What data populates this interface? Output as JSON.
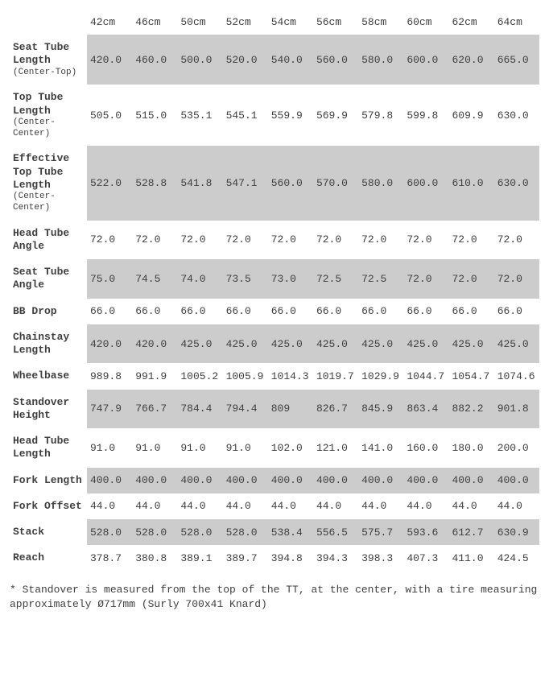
{
  "table": {
    "background_color": "#ffffff",
    "shade_color": "#cccccc",
    "text_color": "#3f3f3f",
    "font_family": "Courier New",
    "columns": [
      "42cm",
      "46cm",
      "50cm",
      "52cm",
      "54cm",
      "56cm",
      "58cm",
      "60cm",
      "62cm",
      "64cm"
    ],
    "rows": [
      {
        "label": "Seat Tube Length",
        "sublabel": "(Center-Top)",
        "shaded": true,
        "values": [
          "420.0",
          "460.0",
          "500.0",
          "520.0",
          "540.0",
          "560.0",
          "580.0",
          "600.0",
          "620.0",
          "665.0"
        ]
      },
      {
        "label": "Top Tube Length",
        "sublabel": "(Center-Center)",
        "shaded": false,
        "values": [
          "505.0",
          "515.0",
          "535.1",
          "545.1",
          "559.9",
          "569.9",
          "579.8",
          "599.8",
          "609.9",
          "630.0"
        ]
      },
      {
        "label": "Effective Top Tube Length",
        "sublabel": "(Center-Center)",
        "shaded": true,
        "values": [
          "522.0",
          "528.8",
          "541.8",
          "547.1",
          "560.0",
          "570.0",
          "580.0",
          "600.0",
          "610.0",
          "630.0"
        ]
      },
      {
        "label": "Head Tube Angle",
        "sublabel": "",
        "shaded": false,
        "values": [
          "72.0",
          "72.0",
          "72.0",
          "72.0",
          "72.0",
          "72.0",
          "72.0",
          "72.0",
          "72.0",
          "72.0"
        ]
      },
      {
        "label": "Seat Tube Angle",
        "sublabel": "",
        "shaded": true,
        "values": [
          "75.0",
          "74.5",
          "74.0",
          "73.5",
          "73.0",
          "72.5",
          "72.5",
          "72.0",
          "72.0",
          "72.0"
        ]
      },
      {
        "label": "BB Drop",
        "sublabel": "",
        "shaded": false,
        "values": [
          "66.0",
          "66.0",
          "66.0",
          "66.0",
          "66.0",
          "66.0",
          "66.0",
          "66.0",
          "66.0",
          "66.0"
        ]
      },
      {
        "label": "Chainstay Length",
        "sublabel": "",
        "shaded": true,
        "values": [
          "420.0",
          "420.0",
          "425.0",
          "425.0",
          "425.0",
          "425.0",
          "425.0",
          "425.0",
          "425.0",
          "425.0"
        ]
      },
      {
        "label": "Wheelbase",
        "sublabel": "",
        "shaded": false,
        "values": [
          "989.8",
          "991.9",
          "1005.2",
          "1005.9",
          "1014.3",
          "1019.7",
          "1029.9",
          "1044.7",
          "1054.7",
          "1074.6"
        ]
      },
      {
        "label": "Standover Height",
        "sublabel": "",
        "shaded": true,
        "values": [
          "747.9",
          "766.7",
          "784.4",
          "794.4",
          "809",
          "826.7",
          "845.9",
          "863.4",
          "882.2",
          "901.8"
        ]
      },
      {
        "label": "Head Tube Length",
        "sublabel": "",
        "shaded": false,
        "values": [
          "91.0",
          "91.0",
          "91.0",
          "91.0",
          "102.0",
          "121.0",
          "141.0",
          "160.0",
          "180.0",
          "200.0"
        ]
      },
      {
        "label": "Fork Length",
        "sublabel": "",
        "shaded": true,
        "values": [
          "400.0",
          "400.0",
          "400.0",
          "400.0",
          "400.0",
          "400.0",
          "400.0",
          "400.0",
          "400.0",
          "400.0"
        ]
      },
      {
        "label": "Fork Offset",
        "sublabel": "",
        "shaded": false,
        "values": [
          "44.0",
          "44.0",
          "44.0",
          "44.0",
          "44.0",
          "44.0",
          "44.0",
          "44.0",
          "44.0",
          "44.0"
        ]
      },
      {
        "label": "Stack",
        "sublabel": "",
        "shaded": true,
        "values": [
          "528.0",
          "528.0",
          "528.0",
          "528.0",
          "538.4",
          "556.5",
          "575.7",
          "593.6",
          "612.7",
          "630.9"
        ]
      },
      {
        "label": "Reach",
        "sublabel": "",
        "shaded": false,
        "values": [
          "378.7",
          "380.8",
          "389.1",
          "389.7",
          "394.8",
          "394.3",
          "398.3",
          "407.3",
          "411.0",
          "424.5"
        ]
      }
    ]
  },
  "footnote": "* Standover is measured from the top of the TT, at the center, with a tire measuring approximately Ø717mm (Surly 700x41 Knard)"
}
